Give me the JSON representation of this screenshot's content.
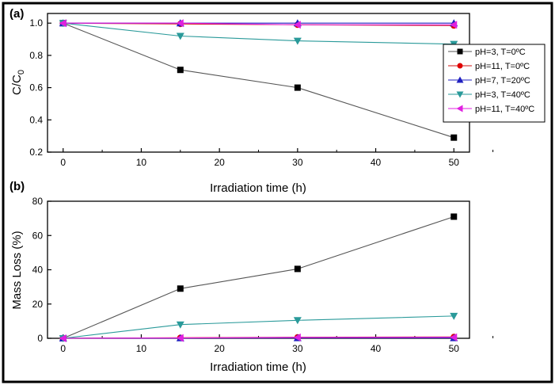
{
  "chart_data": [
    {
      "panel": "(a)",
      "type": "line",
      "xlabel": "Irradiation time (h)",
      "ylabel_main": "C/C",
      "ylabel_sub": "0",
      "x": [
        0,
        15,
        30,
        50
      ],
      "xlim": [
        -2,
        52
      ],
      "ylim": [
        0.2,
        1.06
      ],
      "xticks": [
        "0",
        "10",
        "20",
        "30",
        "40",
        "50"
      ],
      "yticks": [
        "0.2",
        "0.4",
        "0.6",
        "0.8",
        "1.0"
      ],
      "series": [
        {
          "name": "pH=3, T=0ºC",
          "color": "#555555",
          "marker": "square",
          "marker_color": "#000000",
          "values": [
            1.0,
            0.71,
            0.6,
            0.29
          ]
        },
        {
          "name": "pH=11, T=0ºC",
          "color": "#d01010",
          "marker": "circle",
          "marker_color": "#e00000",
          "values": [
            1.0,
            0.995,
            0.99,
            0.985
          ]
        },
        {
          "name": "pH=7, T=20ºC",
          "color": "#2020c0",
          "marker": "triangle-up",
          "marker_color": "#2020c0",
          "values": [
            1.0,
            1.0,
            1.0,
            1.0
          ]
        },
        {
          "name": "pH=3, T=40ºC",
          "color": "#2a9a9a",
          "marker": "triangle-down",
          "marker_color": "#2a9a9a",
          "values": [
            1.0,
            0.92,
            0.89,
            0.87
          ]
        },
        {
          "name": "pH=11, T=40ºC",
          "color": "#e020e0",
          "marker": "triangle-left",
          "marker_color": "#e020e0",
          "values": [
            1.0,
            1.0,
            0.99,
            0.99
          ]
        }
      ],
      "legend": "right"
    },
    {
      "panel": "(b)",
      "type": "line",
      "xlabel": "Irradiation time (h)",
      "ylabel": "Mass Loss (%)",
      "x": [
        0,
        15,
        30,
        50
      ],
      "xlim": [
        -2,
        52
      ],
      "ylim": [
        0,
        80
      ],
      "xticks": [
        "0",
        "10",
        "20",
        "30",
        "40",
        "50"
      ],
      "yticks": [
        "0",
        "20",
        "40",
        "60",
        "80"
      ],
      "series": [
        {
          "color": "#555555",
          "marker": "square",
          "marker_color": "#000000",
          "values": [
            0,
            29,
            40.5,
            71
          ]
        },
        {
          "color": "#d01010",
          "marker": "circle",
          "marker_color": "#e00000",
          "values": [
            0,
            0.3,
            0.6,
            0.8
          ]
        },
        {
          "color": "#2020c0",
          "marker": "triangle-up",
          "marker_color": "#2020c0",
          "values": [
            0,
            0.1,
            0.2,
            0.2
          ]
        },
        {
          "color": "#2a9a9a",
          "marker": "triangle-down",
          "marker_color": "#2a9a9a",
          "values": [
            0,
            8,
            10.5,
            13
          ]
        },
        {
          "color": "#e020e0",
          "marker": "triangle-left",
          "marker_color": "#e020e0",
          "values": [
            0,
            0.2,
            0.5,
            0.6
          ]
        }
      ]
    }
  ]
}
